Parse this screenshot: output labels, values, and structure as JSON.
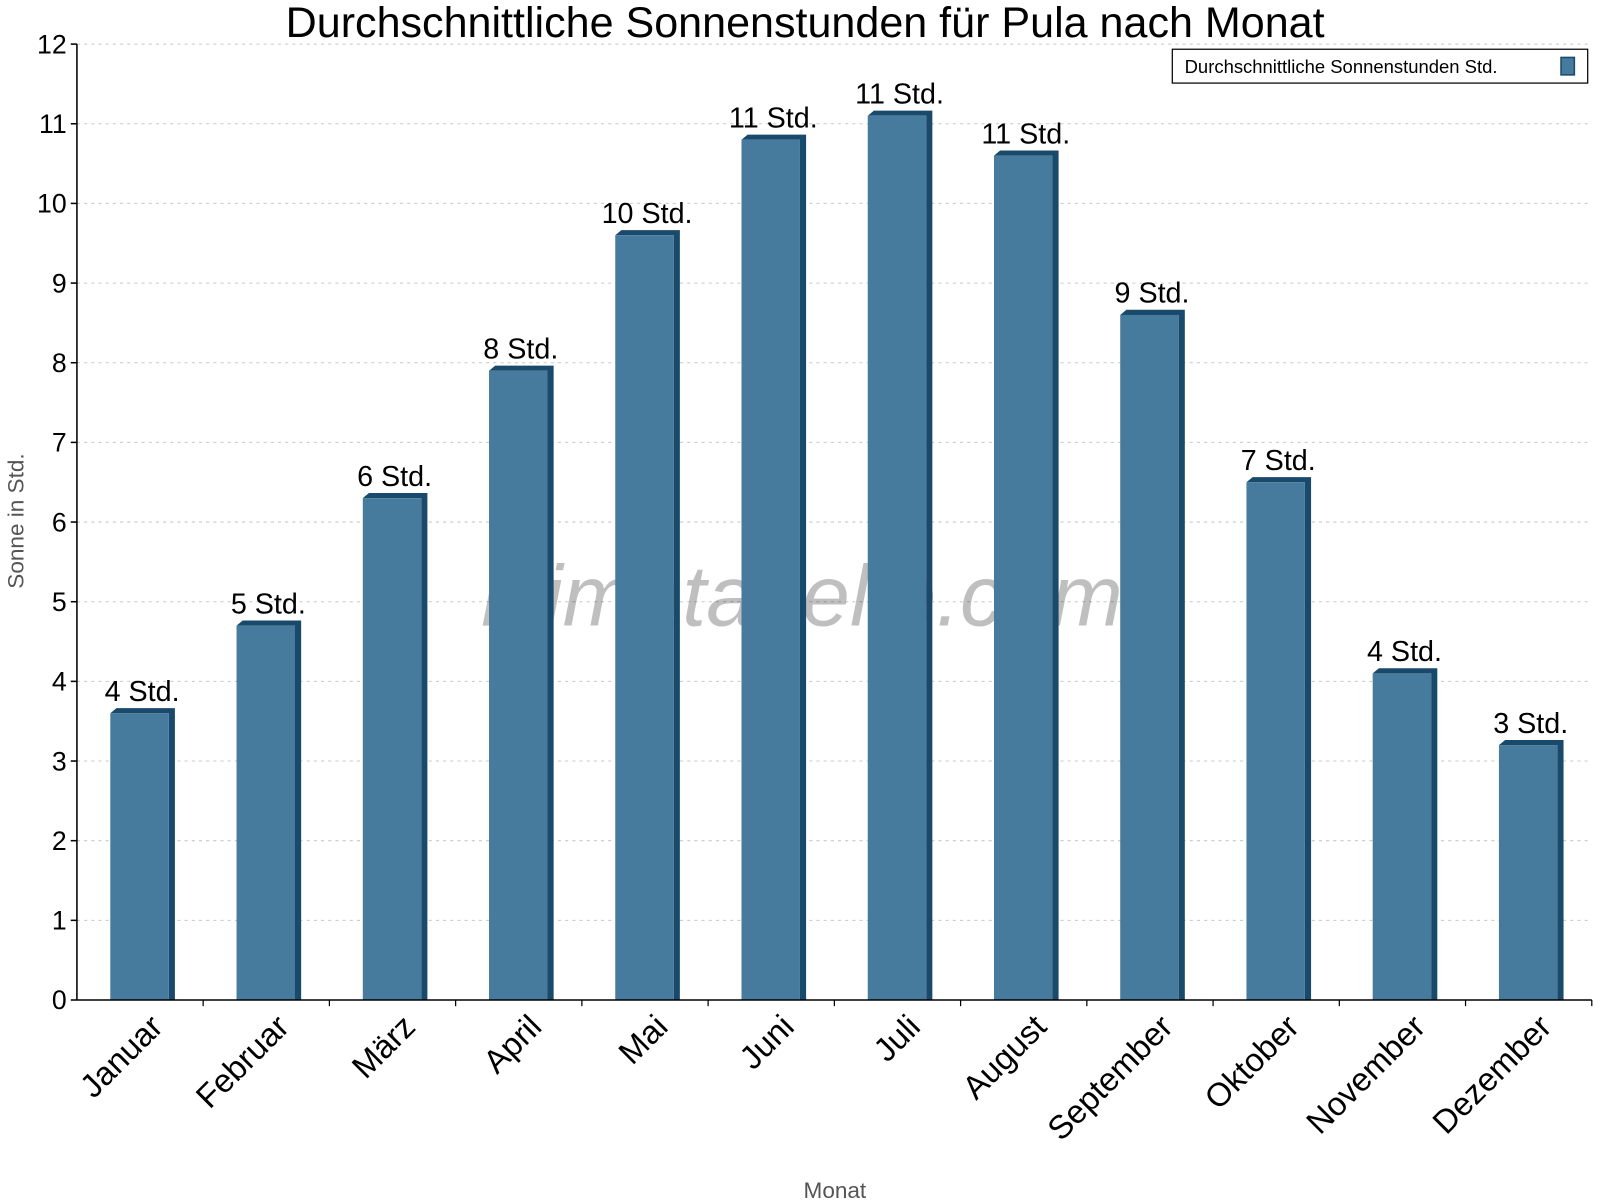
{
  "chart_data": {
    "type": "bar",
    "title": "Durchschnittliche Sonnenstunden für Pula nach Monat",
    "xlabel": "Monat",
    "ylabel": "Sonne in Std.",
    "categories": [
      "Januar",
      "Februar",
      "März",
      "April",
      "Mai",
      "Juni",
      "Juli",
      "August",
      "September",
      "Oktober",
      "November",
      "Dezember"
    ],
    "series": [
      {
        "name": "Durchschnittliche Sonnenstunden Std.",
        "values": [
          3.6,
          4.7,
          6.3,
          7.9,
          9.6,
          10.8,
          11.1,
          10.6,
          8.6,
          6.5,
          4.1,
          3.2
        ],
        "data_labels": [
          "4 Std.",
          "5 Std.",
          "6 Std.",
          "8 Std.",
          "10 Std.",
          "11 Std.",
          "11 Std.",
          "11 Std.",
          "9 Std.",
          "7 Std.",
          "4 Std.",
          "3 Std."
        ],
        "color": "#467b9d",
        "side_color": "#1a4a6b"
      }
    ],
    "ylim": [
      0,
      12
    ],
    "yticks": [
      0,
      1,
      2,
      3,
      4,
      5,
      6,
      7,
      8,
      9,
      10,
      11,
      12
    ],
    "grid": true,
    "legend_position": "top-right",
    "watermark": "klimatabelle.com"
  }
}
